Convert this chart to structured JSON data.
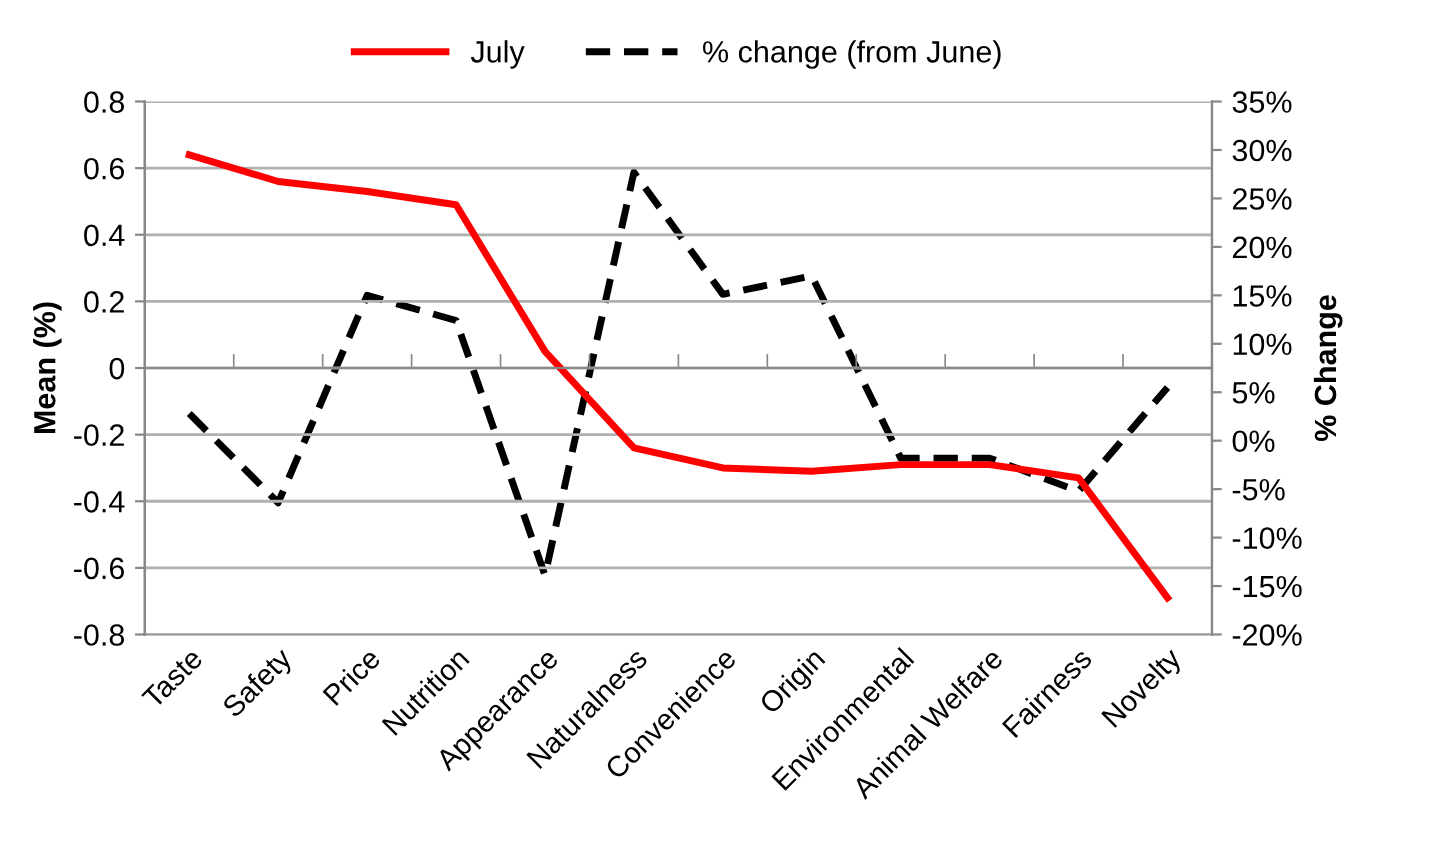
{
  "chart_data": {
    "type": "line",
    "categories": [
      "Taste",
      "Safety",
      "Price",
      "Nutrition",
      "Appearance",
      "Naturalness",
      "Convenience",
      "Origin",
      "Environmental",
      "Animal Welfare",
      "Fairness",
      "Novelty"
    ],
    "series": [
      {
        "name": "July",
        "color": "#ff0000",
        "line_style": "solid",
        "values": [
          0.64,
          0.56,
          0.53,
          0.49,
          0.05,
          -0.24,
          -0.3,
          -0.31,
          -0.29,
          -0.29,
          -0.33,
          -0.69
        ]
      },
      {
        "name": "% change (from June)",
        "color": "#000000",
        "line_style": "dashed",
        "axis": "y2",
        "values": [
          2.8,
          -6.4,
          15.0,
          12.4,
          -13.9,
          27.7,
          15.1,
          17.0,
          -1.8,
          -1.8,
          -5.2,
          5.5
        ]
      }
    ],
    "ylabel": "Mean (%)",
    "y2label": "% Change",
    "ylim": [
      -0.8,
      0.8
    ],
    "yticks": [
      -0.8,
      -0.6,
      -0.4,
      -0.2,
      0,
      0.2,
      0.4,
      0.6,
      0.8
    ],
    "y2lim": [
      -20,
      35
    ],
    "y2ticks": [
      {
        "value": -20,
        "label": "-20%"
      },
      {
        "value": -15,
        "label": "-15%"
      },
      {
        "value": -10,
        "label": "-10%"
      },
      {
        "value": -5,
        "label": "-5%"
      },
      {
        "value": 0,
        "label": "0%"
      },
      {
        "value": 5,
        "label": "5%"
      },
      {
        "value": 10,
        "label": "10%"
      },
      {
        "value": 15,
        "label": "15%"
      },
      {
        "value": 20,
        "label": "20%"
      },
      {
        "value": 25,
        "label": "25%"
      },
      {
        "value": 30,
        "label": "30%"
      },
      {
        "value": 35,
        "label": "35%"
      }
    ],
    "grid": "y",
    "legend": "top",
    "marker": "none"
  }
}
